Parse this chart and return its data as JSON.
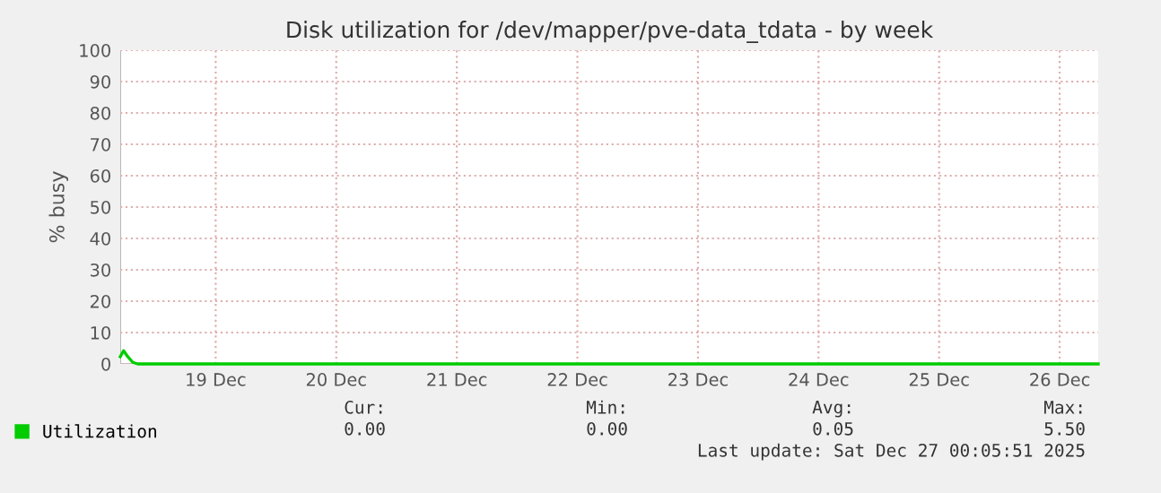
{
  "chart_data": {
    "type": "line",
    "title": "Disk utilization for /dev/mapper/pve-data_tdata - by week",
    "ylabel": "% busy",
    "series": [
      {
        "name": "Utilization",
        "color": "#00cc00",
        "x": [
          "2025-12-18T17:00",
          "2025-12-18T17:40",
          "2025-12-18T18:30",
          "2025-12-18T19:30",
          "2025-12-18T20:30",
          "2025-12-20T00:00",
          "2025-12-22T00:00",
          "2025-12-24T00:00",
          "2025-12-26T19:40"
        ],
        "values": [
          2.3,
          4.2,
          2.3,
          0.5,
          0,
          0,
          0,
          0,
          0
        ]
      }
    ],
    "xlim": [
      "2025-12-18T17:00",
      "2025-12-26T19:40"
    ],
    "xticks": [
      {
        "value": "2025-12-19T12:00",
        "label": "19 Dec"
      },
      {
        "value": "2025-12-20T12:00",
        "label": "20 Dec"
      },
      {
        "value": "2025-12-21T12:00",
        "label": "21 Dec"
      },
      {
        "value": "2025-12-22T12:00",
        "label": "22 Dec"
      },
      {
        "value": "2025-12-23T12:00",
        "label": "23 Dec"
      },
      {
        "value": "2025-12-24T12:00",
        "label": "24 Dec"
      },
      {
        "value": "2025-12-25T12:00",
        "label": "25 Dec"
      },
      {
        "value": "2025-12-26T12:00",
        "label": "26 Dec"
      }
    ],
    "ylim": [
      0,
      100
    ],
    "yticks": [
      0,
      10,
      20,
      30,
      40,
      50,
      60,
      70,
      80,
      90,
      100
    ],
    "grid": true,
    "legend": "bottom left",
    "line_style": "solid",
    "marker": "none",
    "annotations": [
      "Cur:",
      "0.00",
      "Min:",
      "0.00",
      "Avg:",
      "0.05",
      "Max:",
      "5.50",
      "Last update: Sat Dec 27 00:05:51 2025"
    ]
  }
}
